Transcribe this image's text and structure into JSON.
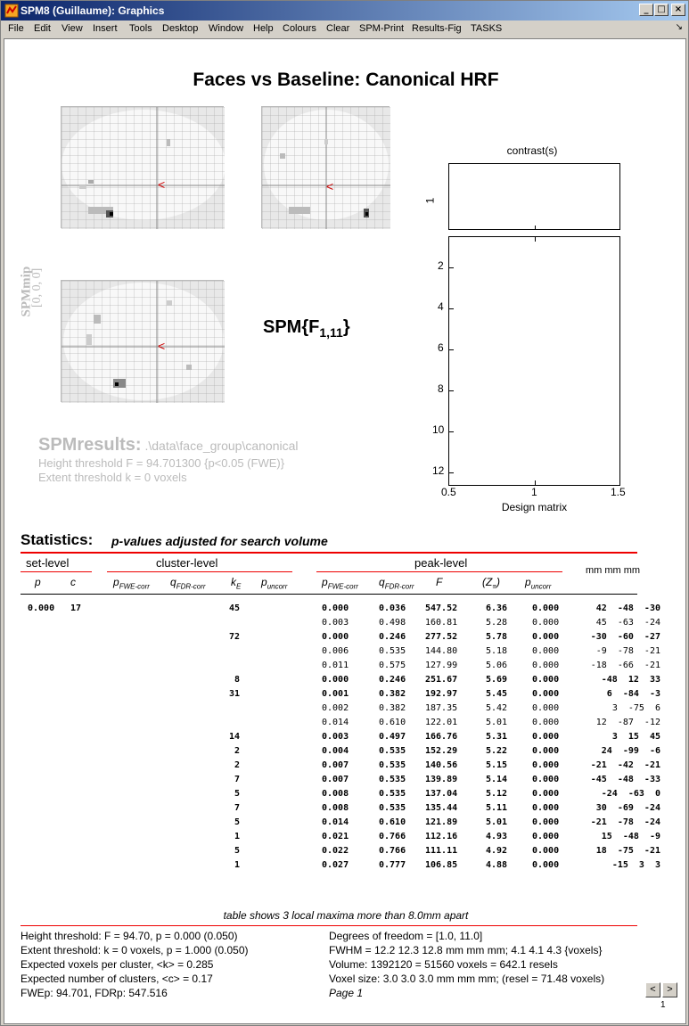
{
  "window": {
    "title": "SPM8 (Guillaume): Graphics",
    "minimize": "_",
    "maximize": "□",
    "close": "×"
  },
  "menu": {
    "items": [
      "File",
      "Edit",
      "View",
      "Insert",
      "Tools",
      "Desktop",
      "Window",
      "Help",
      "Colours",
      "Clear",
      "SPM-Print",
      "Results-Fig",
      "TASKS"
    ],
    "dock_icon": "↘"
  },
  "figure": {
    "title": "Faces vs Baseline: Canonical HRF",
    "spm_mip_label": "SPMmip",
    "spm_mip_coords": "[0, 0, 0]",
    "stat_label": "SPM{F",
    "stat_sub": "1,11",
    "stat_close": "}",
    "contrast_title": "contrast(s)",
    "contrast_ytick": "1",
    "design_yticks": [
      "2",
      "4",
      "6",
      "8",
      "10",
      "12"
    ],
    "design_xticks": [
      "0.5",
      "1",
      "1.5"
    ],
    "design_xlabel": "Design matrix",
    "results_title": "SPMresults:",
    "results_path": " .\\data\\face_group\\canonical",
    "height_threshold": "Height threshold F = 94.701300  {p<0.05 (FWE)}",
    "extent_threshold": "Extent threshold k = 0 voxels",
    "accent": "#dd0000"
  },
  "stats": {
    "title": "Statistics:",
    "subtitle": "p-values adjusted for search volume",
    "set_level": "set-level",
    "cluster_level": "cluster-level",
    "peak_level": "peak-level",
    "mm_header": "mm mm mm",
    "cols": {
      "p": "p",
      "c": "c",
      "pfwe": "p",
      "pfwe_sub": "FWE-corr",
      "qfdr": "q",
      "qfdr_sub": "FDR-corr",
      "ke": "k",
      "ke_sub": "E",
      "punc": "p",
      "punc_sub": "uncorr",
      "F": "F",
      "Z": "(Z",
      "Z_sub": "≡",
      "Z_close": ")"
    },
    "set_p": "0.000",
    "set_c": "17",
    "rows": [
      {
        "k": "45",
        "pfwe": "0.000",
        "q": "0.036",
        "F": "547.52",
        "Z": "6.36",
        "pu": "0.000",
        "mm": "42  -48  -30",
        "bold": true
      },
      {
        "k": "",
        "pfwe": "0.003",
        "q": "0.498",
        "F": "160.81",
        "Z": "5.28",
        "pu": "0.000",
        "mm": "45  -63  -24",
        "bold": false
      },
      {
        "k": "72",
        "pfwe": "0.000",
        "q": "0.246",
        "F": "277.52",
        "Z": "5.78",
        "pu": "0.000",
        "mm": "-30  -60  -27",
        "bold": true
      },
      {
        "k": "",
        "pfwe": "0.006",
        "q": "0.535",
        "F": "144.80",
        "Z": "5.18",
        "pu": "0.000",
        "mm": "-9  -78  -21",
        "bold": false
      },
      {
        "k": "",
        "pfwe": "0.011",
        "q": "0.575",
        "F": "127.99",
        "Z": "5.06",
        "pu": "0.000",
        "mm": "-18  -66  -21",
        "bold": false
      },
      {
        "k": "8",
        "pfwe": "0.000",
        "q": "0.246",
        "F": "251.67",
        "Z": "5.69",
        "pu": "0.000",
        "mm": "-48  12  33",
        "bold": true
      },
      {
        "k": "31",
        "pfwe": "0.001",
        "q": "0.382",
        "F": "192.97",
        "Z": "5.45",
        "pu": "0.000",
        "mm": "6  -84  -3",
        "bold": true
      },
      {
        "k": "",
        "pfwe": "0.002",
        "q": "0.382",
        "F": "187.35",
        "Z": "5.42",
        "pu": "0.000",
        "mm": "3  -75  6",
        "bold": false
      },
      {
        "k": "",
        "pfwe": "0.014",
        "q": "0.610",
        "F": "122.01",
        "Z": "5.01",
        "pu": "0.000",
        "mm": "12  -87  -12",
        "bold": false
      },
      {
        "k": "14",
        "pfwe": "0.003",
        "q": "0.497",
        "F": "166.76",
        "Z": "5.31",
        "pu": "0.000",
        "mm": "3  15  45",
        "bold": true
      },
      {
        "k": "2",
        "pfwe": "0.004",
        "q": "0.535",
        "F": "152.29",
        "Z": "5.22",
        "pu": "0.000",
        "mm": "24  -99  -6",
        "bold": true
      },
      {
        "k": "2",
        "pfwe": "0.007",
        "q": "0.535",
        "F": "140.56",
        "Z": "5.15",
        "pu": "0.000",
        "mm": "-21  -42  -21",
        "bold": true
      },
      {
        "k": "7",
        "pfwe": "0.007",
        "q": "0.535",
        "F": "139.89",
        "Z": "5.14",
        "pu": "0.000",
        "mm": "-45  -48  -33",
        "bold": true
      },
      {
        "k": "5",
        "pfwe": "0.008",
        "q": "0.535",
        "F": "137.04",
        "Z": "5.12",
        "pu": "0.000",
        "mm": "-24  -63  0",
        "bold": true
      },
      {
        "k": "7",
        "pfwe": "0.008",
        "q": "0.535",
        "F": "135.44",
        "Z": "5.11",
        "pu": "0.000",
        "mm": "30  -69  -24",
        "bold": true
      },
      {
        "k": "5",
        "pfwe": "0.014",
        "q": "0.610",
        "F": "121.89",
        "Z": "5.01",
        "pu": "0.000",
        "mm": "-21  -78  -24",
        "bold": true
      },
      {
        "k": "1",
        "pfwe": "0.021",
        "q": "0.766",
        "F": "112.16",
        "Z": "4.93",
        "pu": "0.000",
        "mm": "15  -48  -9",
        "bold": true
      },
      {
        "k": "5",
        "pfwe": "0.022",
        "q": "0.766",
        "F": "111.11",
        "Z": "4.92",
        "pu": "0.000",
        "mm": "18  -75  -21",
        "bold": true
      },
      {
        "k": "1",
        "pfwe": "0.027",
        "q": "0.777",
        "F": "106.85",
        "Z": "4.88",
        "pu": "0.000",
        "mm": "-15  3  3",
        "bold": true
      }
    ]
  },
  "footer": {
    "table_note": "table shows 3 local maxima more than 8.0mm apart",
    "left": [
      "Height threshold: F = 94.70, p = 0.000 (0.050)",
      "Extent threshold: k = 0 voxels, p = 1.000 (0.050)",
      "Expected voxels per cluster, <k> = 0.285",
      "Expected number of clusters, <c> = 0.17",
      "FWEp: 94.701, FDRp: 547.516"
    ],
    "right": [
      "Degrees of freedom = [1.0, 11.0]",
      "FWHM = 12.2 12.3 12.8 mm mm mm; 4.1 4.1 4.3 {voxels}",
      "Volume: 1392120 = 51560 voxels = 642.1 resels",
      "Voxel size: 3.0 3.0 3.0 mm mm mm; (resel = 71.48 voxels)",
      "Page 1"
    ],
    "prev": "<",
    "next": ">",
    "page_num": "1"
  }
}
